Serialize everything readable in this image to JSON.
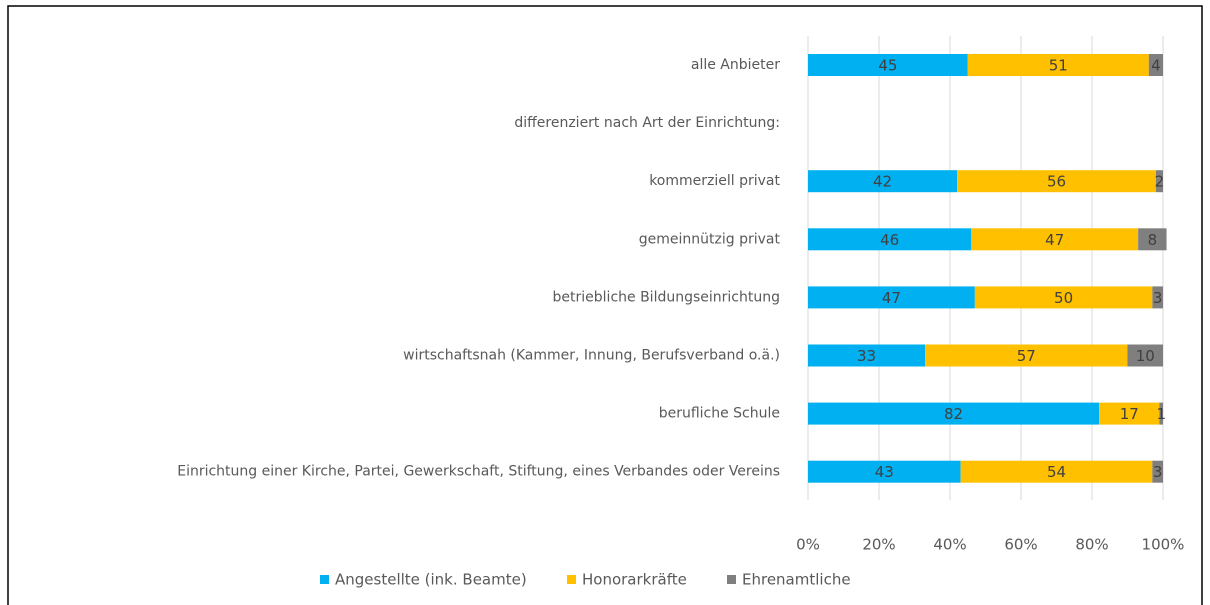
{
  "chart_data": {
    "type": "stacked_bar_horizontal",
    "categories": [
      "alle Anbieter",
      "differenziert nach Art der Einrichtung:",
      "kommerziell privat",
      "gemeinnützig privat",
      "betriebliche Bildungseinrichtung",
      "wirtschaftsnah (Kammer, Innung, Berufsverband o.ä.)",
      "berufliche Schule",
      "Einrichtung einer Kirche, Partei, Gewerkschaft, Stiftung, eines Verbandes oder Vereins"
    ],
    "series": [
      {
        "name": "Angestellte (ink. Beamte)",
        "color": "#00b0f0",
        "values": [
          45,
          null,
          42,
          46,
          47,
          33,
          82,
          43
        ]
      },
      {
        "name": "Honorarkräfte",
        "color": "#ffc000",
        "values": [
          51,
          null,
          56,
          47,
          50,
          57,
          17,
          54
        ]
      },
      {
        "name": "Ehrenamtliche",
        "color": "#7f7f7f",
        "values": [
          4,
          null,
          2,
          8,
          3,
          10,
          1,
          3
        ]
      }
    ],
    "xlim": [
      0,
      100
    ],
    "xticks": [
      {
        "value": 0,
        "label": "0%"
      },
      {
        "value": 20,
        "label": "20%"
      },
      {
        "value": 40,
        "label": "40%"
      },
      {
        "value": 60,
        "label": "60%"
      },
      {
        "value": 80,
        "label": "80%"
      },
      {
        "value": 100,
        "label": "100%"
      }
    ],
    "grid": true,
    "legend": "bottom"
  }
}
